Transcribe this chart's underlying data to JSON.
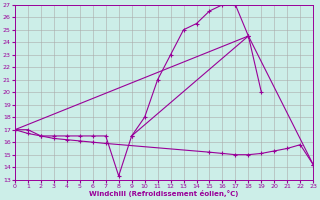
{
  "bg_color": "#cceee8",
  "line_color": "#990099",
  "grid_color": "#aaaaaa",
  "xlabel": "Windchill (Refroidissement éolien,°C)",
  "xlim": [
    0,
    23
  ],
  "ylim": [
    13,
    27
  ],
  "xticks": [
    0,
    1,
    2,
    3,
    4,
    5,
    6,
    7,
    8,
    9,
    10,
    11,
    12,
    13,
    14,
    15,
    16,
    17,
    18,
    19,
    20,
    21,
    22,
    23
  ],
  "yticks": [
    13,
    14,
    15,
    16,
    17,
    18,
    19,
    20,
    21,
    22,
    23,
    24,
    25,
    26,
    27
  ],
  "curves": [
    {
      "x": [
        0,
        1,
        2,
        3,
        4,
        5,
        6,
        7,
        8,
        9,
        10,
        11,
        12,
        13,
        14,
        15,
        16,
        17
      ],
      "y": [
        17,
        17,
        16.5,
        16.5,
        16.5,
        16.5,
        16.5,
        16.5,
        13.3,
        16.5,
        18.0,
        21.0,
        23.0,
        25.0,
        25.5,
        26.5,
        27.0,
        27.0
      ]
    },
    {
      "x": [
        17,
        18,
        19
      ],
      "y": [
        27.0,
        24.5,
        20.0
      ]
    },
    {
      "x": [
        18,
        9
      ],
      "y": [
        24.5,
        16.5
      ]
    },
    {
      "comment": "diagonal line from (0,17) to (18,24.5) to (23,14.2)",
      "x": [
        0,
        18,
        23
      ],
      "y": [
        17.0,
        24.5,
        14.2
      ]
    },
    {
      "x": [
        0,
        1,
        2,
        3,
        4,
        5,
        6,
        7,
        15,
        16,
        17,
        18,
        19,
        20,
        21,
        22,
        23
      ],
      "y": [
        17.0,
        16.7,
        16.5,
        16.3,
        16.2,
        16.1,
        16.0,
        15.9,
        15.2,
        15.1,
        15.0,
        15.0,
        15.1,
        15.3,
        15.5,
        15.8,
        14.2
      ]
    }
  ]
}
